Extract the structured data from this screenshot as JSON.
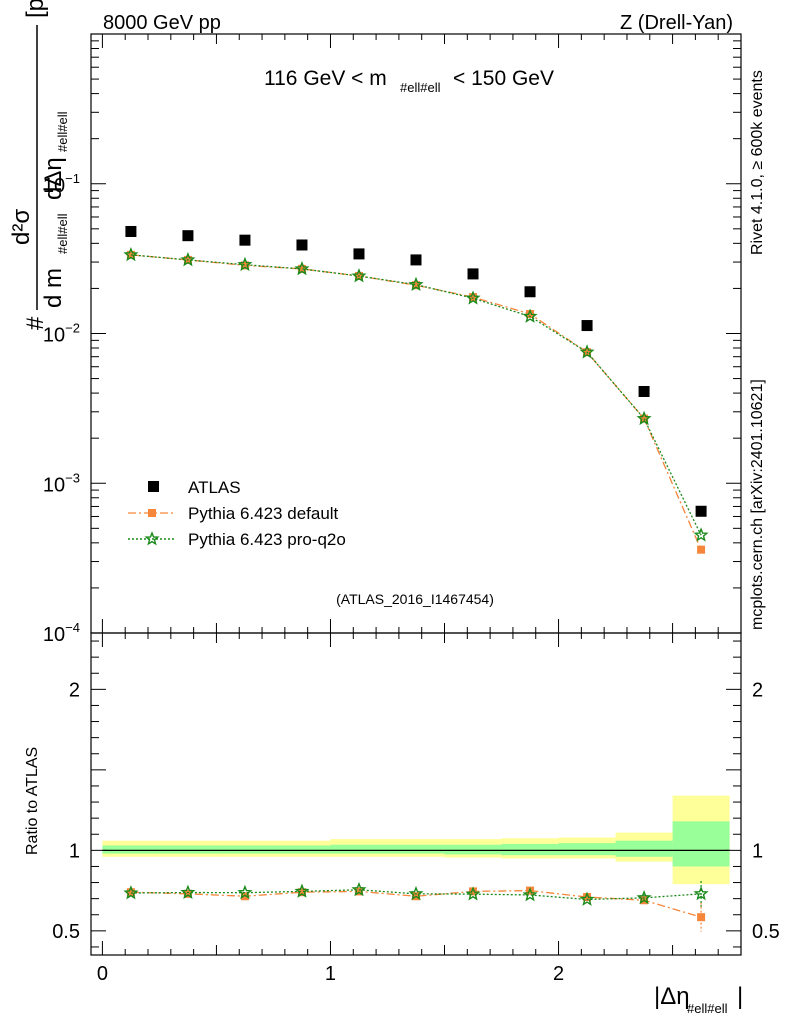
{
  "header": {
    "left": "8000 GeV pp",
    "right": "Z (Drell-Yan)"
  },
  "side_labels": {
    "rivet": "Rivet 4.1.0, ≥ 600k events",
    "mcplots": "mcplots.cern.ch [arXiv:2401.10621]"
  },
  "chart_data": {
    "type": "scatter",
    "title": "116 GeV < m_{#ell#ell} < 150 GeV",
    "title_parts": {
      "pre": "116 GeV < m",
      "sub": "#ell#ell",
      "post": " < 150 GeV"
    },
    "analysis_id": "(ATLAS_2016_I1467454)",
    "ylabel": {
      "hash": "#",
      "numerator": "d²σ",
      "d_m": "d m",
      "m_sub": "#ell#ell",
      "d_eta": "dΔη",
      "eta_sub": "#ell#ell",
      "unit": "[pb/GeV]"
    },
    "xlabel": {
      "main": "|Δη",
      "sub": "#ell#ell",
      "close": "|"
    },
    "ratio_ylabel": "Ratio to ATLAS",
    "xlim": [
      -0.05,
      2.8
    ],
    "ylim_log": [
      0.0001,
      1
    ],
    "ratio_ylim": [
      0.35,
      2.35
    ],
    "x_ticks": [
      0,
      1,
      2
    ],
    "x_tick_labels": [
      "0",
      "1",
      "2"
    ],
    "y_ticks": [
      {
        "value": 0.1,
        "base": "10",
        "exp": "−1"
      },
      {
        "value": 0.01,
        "base": "10",
        "exp": "−2"
      },
      {
        "value": 0.001,
        "base": "10",
        "exp": "−3"
      },
      {
        "value": 0.0001,
        "base": "10",
        "exp": "−4"
      }
    ],
    "ratio_ticks": [
      0.5,
      1,
      2
    ],
    "ratio_tick_labels": [
      "0.5",
      "1",
      "2"
    ],
    "bin_edges": [
      0.0,
      0.25,
      0.5,
      0.75,
      1.0,
      1.25,
      1.5,
      1.75,
      2.0,
      2.25,
      2.5,
      2.75
    ],
    "x": [
      0.125,
      0.375,
      0.625,
      0.875,
      1.125,
      1.375,
      1.625,
      1.875,
      2.125,
      2.375,
      2.625
    ],
    "data": {
      "name": "ATLAS",
      "values": [
        0.048,
        0.045,
        0.042,
        0.039,
        0.034,
        0.031,
        0.025,
        0.019,
        0.0113,
        0.0041,
        0.00065
      ]
    },
    "uncertainty_band": {
      "yellow": [
        [
          0.96,
          1.06
        ],
        [
          0.96,
          1.06
        ],
        [
          0.96,
          1.06
        ],
        [
          0.96,
          1.06
        ],
        [
          0.96,
          1.07
        ],
        [
          0.96,
          1.07
        ],
        [
          0.955,
          1.07
        ],
        [
          0.95,
          1.075
        ],
        [
          0.95,
          1.08
        ],
        [
          0.93,
          1.11
        ],
        [
          0.79,
          1.34
        ]
      ],
      "green": [
        [
          0.98,
          1.03
        ],
        [
          0.98,
          1.03
        ],
        [
          0.98,
          1.03
        ],
        [
          0.98,
          1.03
        ],
        [
          0.98,
          1.035
        ],
        [
          0.98,
          1.035
        ],
        [
          0.975,
          1.035
        ],
        [
          0.97,
          1.04
        ],
        [
          0.97,
          1.045
        ],
        [
          0.96,
          1.06
        ],
        [
          0.9,
          1.18
        ]
      ]
    },
    "series": [
      {
        "name": "Pythia 6.423 default",
        "color": "#f5863a",
        "marker": "square",
        "values": [
          0.0335,
          0.031,
          0.0285,
          0.027,
          0.0242,
          0.021,
          0.0175,
          0.0135,
          0.0075,
          0.0027,
          0.00036
        ],
        "ratio": [
          0.74,
          0.73,
          0.715,
          0.74,
          0.745,
          0.715,
          0.745,
          0.75,
          0.71,
          0.69,
          0.585
        ],
        "ratio_err": [
          0.008,
          0.008,
          0.008,
          0.008,
          0.008,
          0.008,
          0.008,
          0.01,
          0.012,
          0.025,
          0.09
        ]
      },
      {
        "name": "Pythia 6.423 pro-q2o",
        "color": "#1a8a1a",
        "marker": "star",
        "values": [
          0.0335,
          0.031,
          0.0288,
          0.027,
          0.0242,
          0.0212,
          0.0172,
          0.013,
          0.0075,
          0.0027,
          0.00045
        ],
        "ratio": [
          0.735,
          0.738,
          0.737,
          0.745,
          0.755,
          0.73,
          0.728,
          0.723,
          0.695,
          0.705,
          0.73
        ],
        "ratio_err": [
          0.006,
          0.006,
          0.006,
          0.006,
          0.006,
          0.006,
          0.006,
          0.008,
          0.01,
          0.02,
          0.08
        ]
      }
    ],
    "colors": {
      "band_yellow": "#ffff99",
      "band_green": "#99ff99",
      "data": "#000000",
      "analysis_label": "#999999",
      "side_label": "#888888"
    }
  }
}
